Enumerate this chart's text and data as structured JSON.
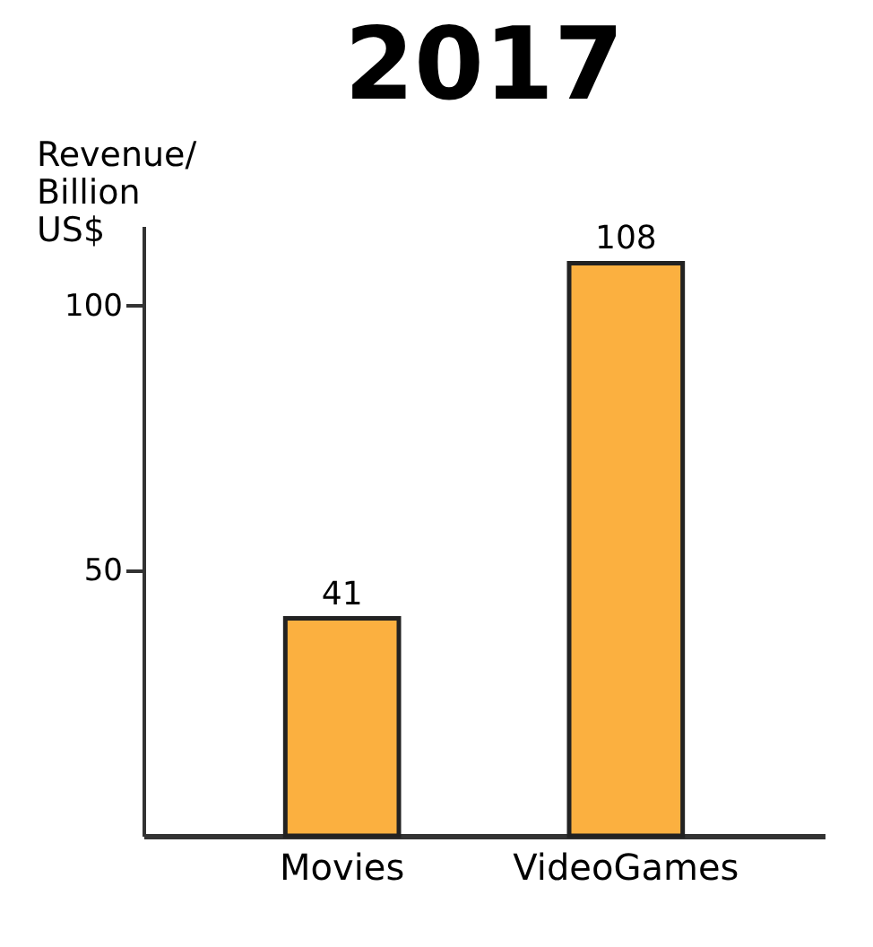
{
  "chart_data": {
    "type": "bar",
    "title": "2017",
    "ylabel": "Revenue/ Billion US$",
    "categories": [
      "Movies",
      "VideoGames"
    ],
    "values": [
      41,
      108
    ],
    "color": "#fbb040",
    "ylim": [
      0,
      115
    ],
    "yticks": [
      50,
      100
    ],
    "grid": false,
    "data_labels": true
  }
}
